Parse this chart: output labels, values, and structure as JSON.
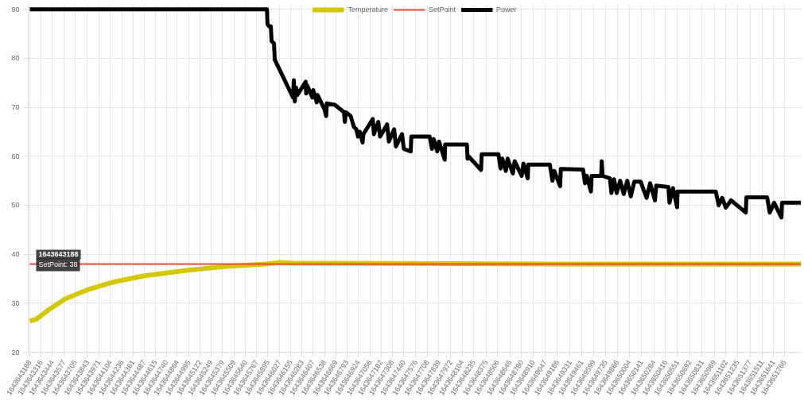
{
  "chart_data": {
    "type": "line",
    "legend": "top",
    "grid": true,
    "ylim": [
      20,
      91
    ],
    "yticks": [
      20,
      30,
      40,
      50,
      60,
      70,
      80,
      90
    ],
    "xlim": [
      1643643170,
      1643651958
    ],
    "xticks": [
      1643643188,
      1643643316,
      1643643444,
      1643643577,
      1643643705,
      1643643843,
      1643643971,
      1643644104,
      1643644236,
      1643644361,
      1643644487,
      1643644615,
      1643644740,
      1643644864,
      1643644995,
      1643645122,
      1643645249,
      1643645379,
      1643645509,
      1643645640,
      1643645767,
      1643645895,
      1643646027,
      1643646155,
      1643646283,
      1643646407,
      1643646538,
      1643646669,
      1643646793,
      1643646924,
      1643647056,
      1643647182,
      1643647308,
      1643647440,
      1643647576,
      1643647708,
      1643647839,
      1643647972,
      1643648104,
      1643648235,
      1643648375,
      1643648506,
      1643648646,
      1643648780,
      1643648910,
      1643649047,
      1643649186,
      1643649331,
      1643649461,
      1643649599,
      1643649735,
      1643649866,
      1643650004,
      1643650141,
      1643650284,
      1643650416,
      1643650551,
      1643650692,
      1643650831,
      1643650969,
      1643651102,
      1643651235,
      1643651377,
      1643651511,
      1643651641,
      1643651766
    ],
    "series": [
      {
        "name": "Temperature",
        "color": "#d4c800",
        "x": [
          1643643188,
          1643643260,
          1643643413,
          1643643592,
          1643643835,
          1643644131,
          1643644491,
          1643644967,
          1643645416,
          1643645866,
          1643646018,
          1643646171,
          1643647366,
          1643649163,
          1643651958
        ],
        "values": [
          26.4,
          26.7,
          28.8,
          30.9,
          32.7,
          34.3,
          35.6,
          36.7,
          37.5,
          38.0,
          38.3,
          38.2,
          38.1,
          38,
          38
        ]
      },
      {
        "name": "SetPoint",
        "color": "#e74c3c",
        "x": [
          1643643188,
          1643651958
        ],
        "values": [
          38,
          38
        ]
      },
      {
        "name": "Power",
        "color": "#000000",
        "x": [
          1643643188,
          1643645884,
          1643645890,
          1643645910,
          1643645928,
          1643645937,
          1643645964,
          1643645973,
          1643646180,
          1643646190,
          1643646200,
          1643646216,
          1643646230,
          1643646324,
          1643646330,
          1643646340,
          1643646400,
          1643646410,
          1643646450,
          1643646460,
          1643646540,
          1643646557,
          1643646565,
          1643646656,
          1643646760,
          1643646770,
          1643646780,
          1643646836,
          1643646872,
          1643646900,
          1643646920,
          1643646940,
          1643646971,
          1643646980,
          1643647087,
          1643647100,
          1643647150,
          1643647170,
          1643647250,
          1643647270,
          1643647330,
          1643647350,
          1643647420,
          1643647440,
          1643647519,
          1643647525,
          1643647734,
          1643647760,
          1643647780,
          1643647820,
          1643647840,
          1643647905,
          1643647910,
          1643648157,
          1643648165,
          1643648175,
          1643648318,
          1643648325,
          1643648516,
          1643648540,
          1643648560,
          1643648600,
          1643648620,
          1643648680,
          1643648700,
          1643648780,
          1643648800,
          1643648849,
          1643648855,
          1643649100,
          1643649130,
          1643649150,
          1643649217,
          1643649225,
          1643649478,
          1643649500,
          1643649520,
          1643649567,
          1643649575,
          1643649684,
          1643649690,
          1643649700,
          1643649783,
          1643649800,
          1643649830,
          1643649860,
          1643649900,
          1643649940,
          1643649980,
          1643650020,
          1643650060,
          1643650133,
          1643650200,
          1643650240,
          1643650295,
          1643650310,
          1643650448,
          1643650460,
          1643650500,
          1643650547,
          1643650552,
          1643650987,
          1643651020,
          1643651060,
          1643651100,
          1643651160,
          1643651328,
          1643651335,
          1643651571,
          1643651600,
          1643651650,
          1643651733,
          1643651740,
          1643651958
        ],
        "values": [
          90,
          90,
          87,
          86.5,
          86.5,
          83.5,
          83,
          79.7,
          72,
          75.5,
          71.2,
          74,
          72.5,
          75.2,
          72.8,
          74.5,
          72,
          73.5,
          71,
          72.5,
          69.5,
          68.2,
          70.8,
          70.5,
          69,
          67,
          69,
          68.2,
          66,
          65.5,
          64,
          65,
          62.8,
          64.5,
          67.6,
          64.5,
          67,
          64,
          66.5,
          63,
          65.5,
          62,
          64.5,
          61.5,
          61,
          64,
          64,
          61.5,
          63.5,
          61,
          63,
          59.3,
          62.4,
          62.4,
          59.5,
          60,
          57.2,
          60.4,
          60.4,
          57.5,
          59.5,
          57,
          59.5,
          56.5,
          59,
          56,
          58.5,
          55.5,
          58.3,
          58.3,
          55,
          57,
          53.9,
          57.4,
          57.3,
          54.5,
          56,
          52.8,
          56,
          56,
          59,
          56,
          55.5,
          52.5,
          55.3,
          52.5,
          55,
          52.3,
          55,
          51.8,
          54.8,
          54.8,
          51.5,
          54.5,
          51,
          54,
          53.7,
          50.5,
          53.5,
          49.6,
          52.8,
          52.8,
          50,
          51.5,
          49.5,
          51,
          48.5,
          51.6,
          51.6,
          48.5,
          50.5,
          47.5,
          50.5,
          50.5
        ]
      }
    ],
    "annotations": [
      {
        "text": "1643643188",
        "x": 1643643188,
        "y": 38
      },
      {
        "text": "SetPoint: 38",
        "x": 1643643188,
        "y": 38
      }
    ]
  }
}
